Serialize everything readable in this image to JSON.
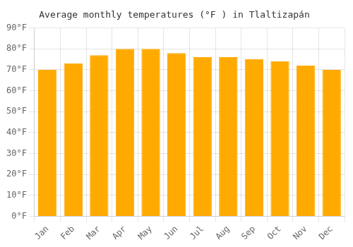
{
  "chart_data": {
    "type": "bar",
    "title": "Average monthly temperatures (°F ) in Tlaltizapán",
    "categories": [
      "Jan",
      "Feb",
      "Mar",
      "Apr",
      "May",
      "Jun",
      "Jul",
      "Aug",
      "Sep",
      "Oct",
      "Nov",
      "Dec"
    ],
    "values": [
      70,
      73,
      77,
      80,
      80,
      78,
      76,
      76,
      75,
      74,
      72,
      70
    ],
    "color": "#FFAA00",
    "ylim": [
      0,
      90
    ],
    "yticks": [
      {
        "value": 0,
        "label": "0°F"
      },
      {
        "value": 10,
        "label": "10°F"
      },
      {
        "value": 20,
        "label": "20°F"
      },
      {
        "value": 30,
        "label": "30°F"
      },
      {
        "value": 40,
        "label": "40°F"
      },
      {
        "value": 50,
        "label": "50°F"
      },
      {
        "value": 60,
        "label": "60°F"
      },
      {
        "value": 70,
        "label": "70°F"
      },
      {
        "value": 80,
        "label": "80°F"
      },
      {
        "value": 90,
        "label": "90°F"
      }
    ],
    "grid": true
  }
}
